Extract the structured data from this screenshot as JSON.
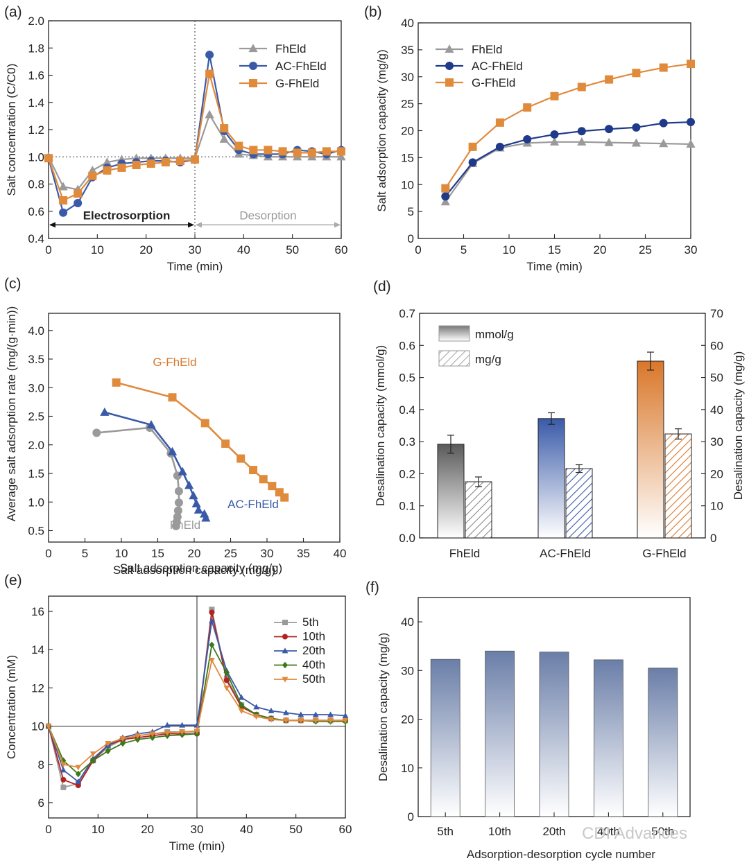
{
  "watermark": "CDI Advances",
  "colors": {
    "FhEld": "#9a9a9a",
    "AC-FhEld": "#3a5aa8",
    "G-FhEld": "#e08a3c",
    "red": "#b22222",
    "green": "#3a7a1a"
  },
  "chart_data": [
    {
      "panel": "(a)",
      "type": "line",
      "xlabel": "Time (min)",
      "ylabel": "Salt concentration (C/C0)",
      "xlim": [
        0,
        60
      ],
      "ylim": [
        0.4,
        2.0
      ],
      "xticks": [
        0,
        10,
        20,
        30,
        40,
        50,
        60
      ],
      "yticks": [
        0.4,
        0.6,
        0.8,
        1.0,
        1.2,
        1.4,
        1.6,
        1.8,
        2.0
      ],
      "ref_y": 1.0,
      "ref_x": 30,
      "annotations": [
        "Electrosorption",
        "Desorption"
      ],
      "series": [
        {
          "name": "FhEld",
          "color": "#9a9a9a",
          "marker": "triangle",
          "x": [
            0,
            3,
            6,
            9,
            12,
            15,
            18,
            21,
            24,
            27,
            30,
            33,
            36,
            39,
            42,
            45,
            48,
            51,
            54,
            57,
            60
          ],
          "y": [
            1.0,
            0.78,
            0.76,
            0.9,
            0.96,
            0.98,
            0.99,
            0.99,
            0.99,
            0.99,
            0.99,
            1.31,
            1.13,
            1.02,
            1.01,
            1.0,
            1.0,
            1.0,
            1.0,
            1.0,
            1.0
          ]
        },
        {
          "name": "AC-FhEld",
          "color": "#3a5aa8",
          "marker": "circle",
          "x": [
            0,
            3,
            6,
            9,
            12,
            15,
            18,
            21,
            24,
            27,
            30,
            33,
            36,
            39,
            42,
            45,
            48,
            51,
            54,
            57,
            60
          ],
          "y": [
            0.99,
            0.59,
            0.66,
            0.85,
            0.92,
            0.95,
            0.96,
            0.97,
            0.97,
            0.96,
            0.98,
            1.75,
            1.19,
            1.05,
            1.02,
            1.02,
            1.02,
            1.05,
            1.04,
            1.02,
            1.05
          ]
        },
        {
          "name": "G-FhEld",
          "color": "#e08a3c",
          "marker": "square",
          "x": [
            0,
            3,
            6,
            9,
            12,
            15,
            18,
            21,
            24,
            27,
            30,
            33,
            36,
            39,
            42,
            45,
            48,
            51,
            54,
            57,
            60
          ],
          "y": [
            0.99,
            0.68,
            0.73,
            0.86,
            0.9,
            0.92,
            0.94,
            0.95,
            0.96,
            0.97,
            0.98,
            1.61,
            1.21,
            1.08,
            1.05,
            1.05,
            1.04,
            1.03,
            1.03,
            1.04,
            1.04
          ]
        }
      ]
    },
    {
      "panel": "(b)",
      "type": "line",
      "xlabel": "Time (min)",
      "ylabel": "Salt adsorption capacity (mg/g)",
      "xlim": [
        0,
        30
      ],
      "ylim": [
        0,
        40
      ],
      "xticks": [
        0,
        5,
        10,
        15,
        20,
        25,
        30
      ],
      "yticks": [
        0,
        5,
        10,
        15,
        20,
        25,
        30,
        35,
        40
      ],
      "series": [
        {
          "name": "FhEld",
          "color": "#9a9a9a",
          "marker": "triangle",
          "x": [
            3,
            6,
            9,
            12,
            15,
            18,
            21,
            24,
            27,
            30
          ],
          "y": [
            6.8,
            13.9,
            16.8,
            17.7,
            17.9,
            17.9,
            17.8,
            17.7,
            17.6,
            17.5
          ]
        },
        {
          "name": "AC-FhEld",
          "color": "#1f3a8a",
          "marker": "circle",
          "x": [
            3,
            6,
            9,
            12,
            15,
            18,
            21,
            24,
            27,
            30
          ],
          "y": [
            7.8,
            14.1,
            17.0,
            18.4,
            19.3,
            19.9,
            20.3,
            20.6,
            21.4,
            21.6
          ]
        },
        {
          "name": "G-FhEld",
          "color": "#e08a3c",
          "marker": "square",
          "x": [
            3,
            6,
            9,
            12,
            15,
            18,
            21,
            24,
            27,
            30
          ],
          "y": [
            9.3,
            17.0,
            21.5,
            24.3,
            26.4,
            28.1,
            29.5,
            30.7,
            31.7,
            32.4
          ]
        }
      ]
    },
    {
      "panel": "(c)",
      "type": "scatter",
      "xlabel": "Salt adsorption capacity (mg/g)",
      "ylabel": "Average salt adsorption rate (mg/(g·min))",
      "xlim": [
        0,
        40
      ],
      "ylim": [
        0.3,
        4.3
      ],
      "xticks": [
        0,
        5,
        10,
        15,
        20,
        25,
        30,
        35,
        40
      ],
      "yticks": [
        0.5,
        1.0,
        1.5,
        2.0,
        2.5,
        3.0,
        3.5,
        4.0
      ],
      "series": [
        {
          "name": "FhEld",
          "color": "#9a9a9a",
          "marker": "circle",
          "x": [
            6.6,
            13.9,
            16.8,
            17.7,
            17.9,
            17.9,
            17.8,
            17.7,
            17.6,
            17.5
          ],
          "y": [
            2.21,
            2.3,
            1.85,
            1.46,
            1.19,
            0.99,
            0.85,
            0.74,
            0.65,
            0.58
          ]
        },
        {
          "name": "AC-FhEld",
          "color": "#3a5aa8",
          "marker": "triangle",
          "x": [
            7.7,
            14.1,
            17.0,
            18.4,
            19.3,
            19.9,
            20.3,
            20.6,
            21.4,
            21.6
          ],
          "y": [
            2.57,
            2.35,
            1.88,
            1.53,
            1.29,
            1.11,
            0.97,
            0.86,
            0.79,
            0.72
          ]
        },
        {
          "name": "G-FhEld",
          "color": "#e08a3c",
          "marker": "square",
          "x": [
            9.3,
            17.0,
            21.5,
            24.3,
            26.4,
            28.1,
            29.5,
            30.7,
            31.7,
            32.4
          ],
          "y": [
            3.09,
            2.83,
            2.38,
            2.02,
            1.76,
            1.56,
            1.4,
            1.28,
            1.17,
            1.08
          ]
        }
      ],
      "labels": [
        "G-FhEld",
        "AC-FhEld",
        "FhEld"
      ]
    },
    {
      "panel": "(d)",
      "type": "bar",
      "categories": [
        "FhEld",
        "AC-FhEld",
        "G-FhEld"
      ],
      "ylabel": "Desalination capacity (mmol/g)",
      "y2label": "Desalination capacity (mg/g)",
      "ylim": [
        0,
        0.7
      ],
      "y2lim": [
        0,
        70
      ],
      "yticks": [
        0.0,
        0.1,
        0.2,
        0.3,
        0.4,
        0.5,
        0.6,
        0.7
      ],
      "y2ticks": [
        0,
        10,
        20,
        30,
        40,
        50,
        60,
        70
      ],
      "series": [
        {
          "name": "mmol/g",
          "values": [
            0.292,
            0.372,
            0.551
          ],
          "errors": [
            0.028,
            0.018,
            0.028
          ]
        },
        {
          "name": "mg/g",
          "values": [
            17.5,
            21.6,
            32.4
          ],
          "errors": [
            1.5,
            1.2,
            1.6
          ]
        }
      ]
    },
    {
      "panel": "(e)",
      "type": "line",
      "xlabel": "Time (min)",
      "ylabel": "Concentration (mM)",
      "xlim": [
        0,
        60
      ],
      "ylim": [
        5.2,
        16.8
      ],
      "xticks": [
        0,
        10,
        20,
        30,
        40,
        50,
        60
      ],
      "yticks": [
        6,
        8,
        10,
        12,
        14,
        16
      ],
      "ref_y": 10,
      "ref_x": 30,
      "series": [
        {
          "name": "5th",
          "color": "#9a9a9a",
          "marker": "square",
          "x": [
            0,
            3,
            6,
            9,
            12,
            15,
            18,
            21,
            24,
            27,
            30,
            33,
            36,
            39,
            42,
            45,
            48,
            51,
            54,
            57,
            60
          ],
          "y": [
            10,
            6.8,
            7.0,
            8.2,
            8.9,
            9.3,
            9.5,
            9.6,
            9.7,
            9.7,
            9.7,
            16.1,
            12.5,
            11.1,
            10.6,
            10.4,
            10.3,
            10.3,
            10.3,
            10.3,
            10.3
          ]
        },
        {
          "name": "10th",
          "color": "#b22222",
          "marker": "circle",
          "x": [
            0,
            3,
            6,
            9,
            12,
            15,
            18,
            21,
            24,
            27,
            30,
            33,
            36,
            39,
            42,
            45,
            48,
            51,
            54,
            57,
            60
          ],
          "y": [
            10,
            7.2,
            6.9,
            8.2,
            9.0,
            9.3,
            9.4,
            9.5,
            9.6,
            9.6,
            9.6,
            15.95,
            12.4,
            11.0,
            10.6,
            10.4,
            10.3,
            10.3,
            10.3,
            10.3,
            10.3
          ]
        },
        {
          "name": "20th",
          "color": "#3a5aa8",
          "marker": "triangle",
          "x": [
            0,
            3,
            6,
            9,
            12,
            15,
            18,
            21,
            24,
            27,
            30,
            33,
            36,
            39,
            42,
            45,
            48,
            51,
            54,
            57,
            60
          ],
          "y": [
            10,
            7.7,
            7.1,
            8.3,
            9.0,
            9.4,
            9.6,
            9.7,
            10.05,
            10.05,
            10.05,
            15.5,
            12.9,
            11.5,
            11.0,
            10.8,
            10.7,
            10.6,
            10.6,
            10.6,
            10.55
          ]
        },
        {
          "name": "40th",
          "color": "#3a7a1a",
          "marker": "diamond",
          "x": [
            0,
            3,
            6,
            9,
            12,
            15,
            18,
            21,
            24,
            27,
            30,
            33,
            36,
            39,
            42,
            45,
            48,
            51,
            54,
            57,
            60
          ],
          "y": [
            10,
            8.2,
            7.5,
            8.2,
            8.7,
            9.1,
            9.3,
            9.4,
            9.5,
            9.55,
            9.6,
            14.25,
            12.8,
            11.1,
            10.6,
            10.4,
            10.3,
            10.3,
            10.25,
            10.25,
            10.25
          ]
        },
        {
          "name": "50th",
          "color": "#e08a3c",
          "marker": "triangle-down",
          "x": [
            0,
            3,
            6,
            9,
            12,
            15,
            18,
            21,
            24,
            27,
            30,
            33,
            36,
            39,
            42,
            45,
            48,
            51,
            54,
            57,
            60
          ],
          "y": [
            10,
            8.0,
            7.85,
            8.55,
            9.1,
            9.35,
            9.5,
            9.6,
            9.65,
            9.7,
            9.75,
            13.45,
            12.0,
            10.8,
            10.5,
            10.35,
            10.3,
            10.3,
            10.3,
            10.3,
            10.3
          ]
        }
      ]
    },
    {
      "panel": "(f)",
      "type": "bar",
      "xlabel": "Adsorption-desorption cycle number",
      "ylabel": "Desalination capacity (mg/g)",
      "categories": [
        "5th",
        "10th",
        "20th",
        "40th",
        "50th"
      ],
      "values": [
        32.3,
        34.0,
        33.8,
        32.2,
        30.5
      ],
      "ylim": [
        0,
        45
      ],
      "yticks": [
        0,
        10,
        20,
        30,
        40
      ]
    }
  ]
}
